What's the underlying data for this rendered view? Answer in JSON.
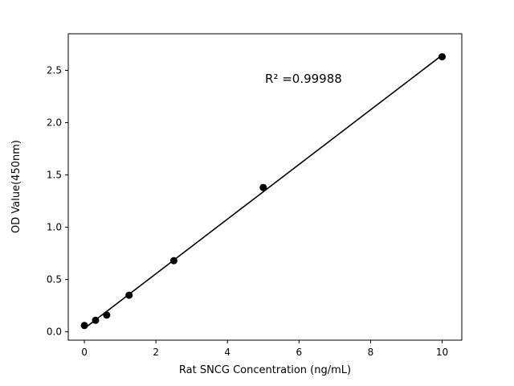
{
  "figure": {
    "background": "#ffffff"
  },
  "chart_data": {
    "type": "scatter",
    "title": "",
    "xlabel": "Rat SNCG Concentration (ng/mL)",
    "ylabel": "OD Value(450nm)",
    "x": [
      0,
      0.313,
      0.625,
      1.25,
      2.5,
      5,
      10
    ],
    "y": [
      0.06,
      0.11,
      0.16,
      0.35,
      0.68,
      1.38,
      2.63
    ],
    "fit": {
      "type": "linear",
      "r_squared": 0.99988
    },
    "annotation": {
      "text": "R² =0.99988",
      "x": 5.05,
      "y": 2.38
    },
    "xlim": [
      -0.45,
      10.55
    ],
    "ylim": [
      -0.08,
      2.85
    ],
    "xticks": [
      {
        "value": 0,
        "label": "0"
      },
      {
        "value": 2,
        "label": "2"
      },
      {
        "value": 4,
        "label": "4"
      },
      {
        "value": 6,
        "label": "6"
      },
      {
        "value": 8,
        "label": "8"
      },
      {
        "value": 10,
        "label": "10"
      }
    ],
    "yticks": [
      {
        "value": 0.0,
        "label": "0.0"
      },
      {
        "value": 0.5,
        "label": "0.5"
      },
      {
        "value": 1.0,
        "label": "1.0"
      },
      {
        "value": 1.5,
        "label": "1.5"
      },
      {
        "value": 2.0,
        "label": "2.0"
      },
      {
        "value": 2.5,
        "label": "2.5"
      }
    ],
    "grid": false,
    "legend": "none",
    "marker_color": "#000000",
    "line_color": "#000000",
    "background_color": "#ffffff"
  }
}
